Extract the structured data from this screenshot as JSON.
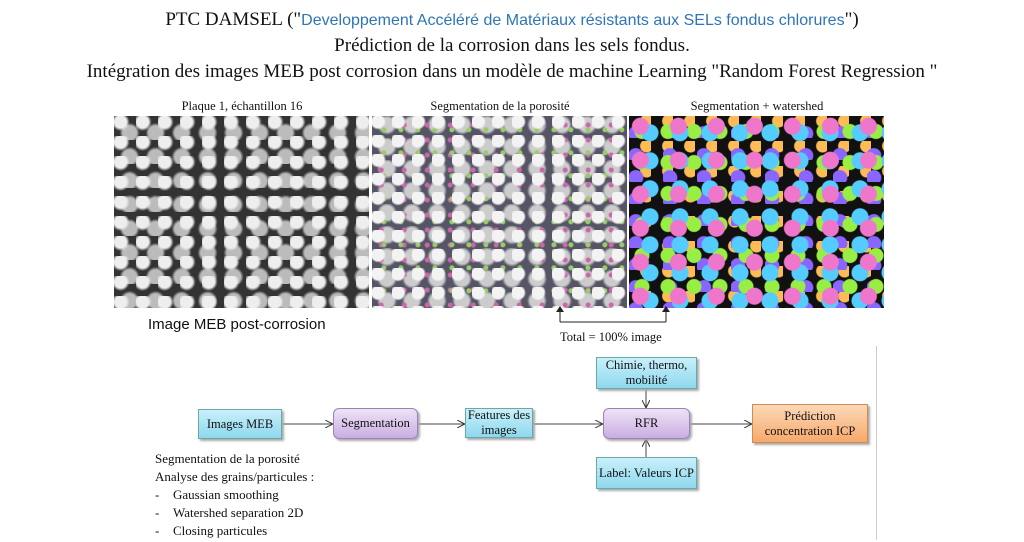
{
  "header": {
    "line1_prefix": "PTC DAMSEL (\"",
    "line1_blue": "Developpement Accéléré de Matériaux résistants aux SELs fondus chlorures",
    "line1_suffix": "\")",
    "line2": "Prédiction de la corrosion dans les sels fondus.",
    "line3": "Intégration des images MEB post corrosion dans un modèle de machine Learning \"Random Forest Regression \""
  },
  "images": {
    "captions": [
      "Plaque 1, échantillon 16",
      "Segmentation de la porosité",
      "Segmentation + watershed"
    ],
    "below_label": "Image MEB post-corrosion",
    "total_label": "Total = 100% image"
  },
  "flow": {
    "images_meb": "Images MEB",
    "segmentation": "Segmentation",
    "features": "Features des images",
    "rfr": "RFR",
    "prediction": "Prédiction concentration ICP",
    "chimie": "Chimie, thermo, mobilité",
    "label": "Label: Valeurs ICP",
    "colors": {
      "input": "#8fd8ee",
      "process": "#c9aee0",
      "output": "#f6a96b"
    }
  },
  "notes": {
    "line1": "Segmentation de la porosité",
    "line2": "Analyse des grains/particules :",
    "items": [
      "Gaussian smoothing",
      "Watershed separation 2D",
      "Closing particules"
    ]
  }
}
